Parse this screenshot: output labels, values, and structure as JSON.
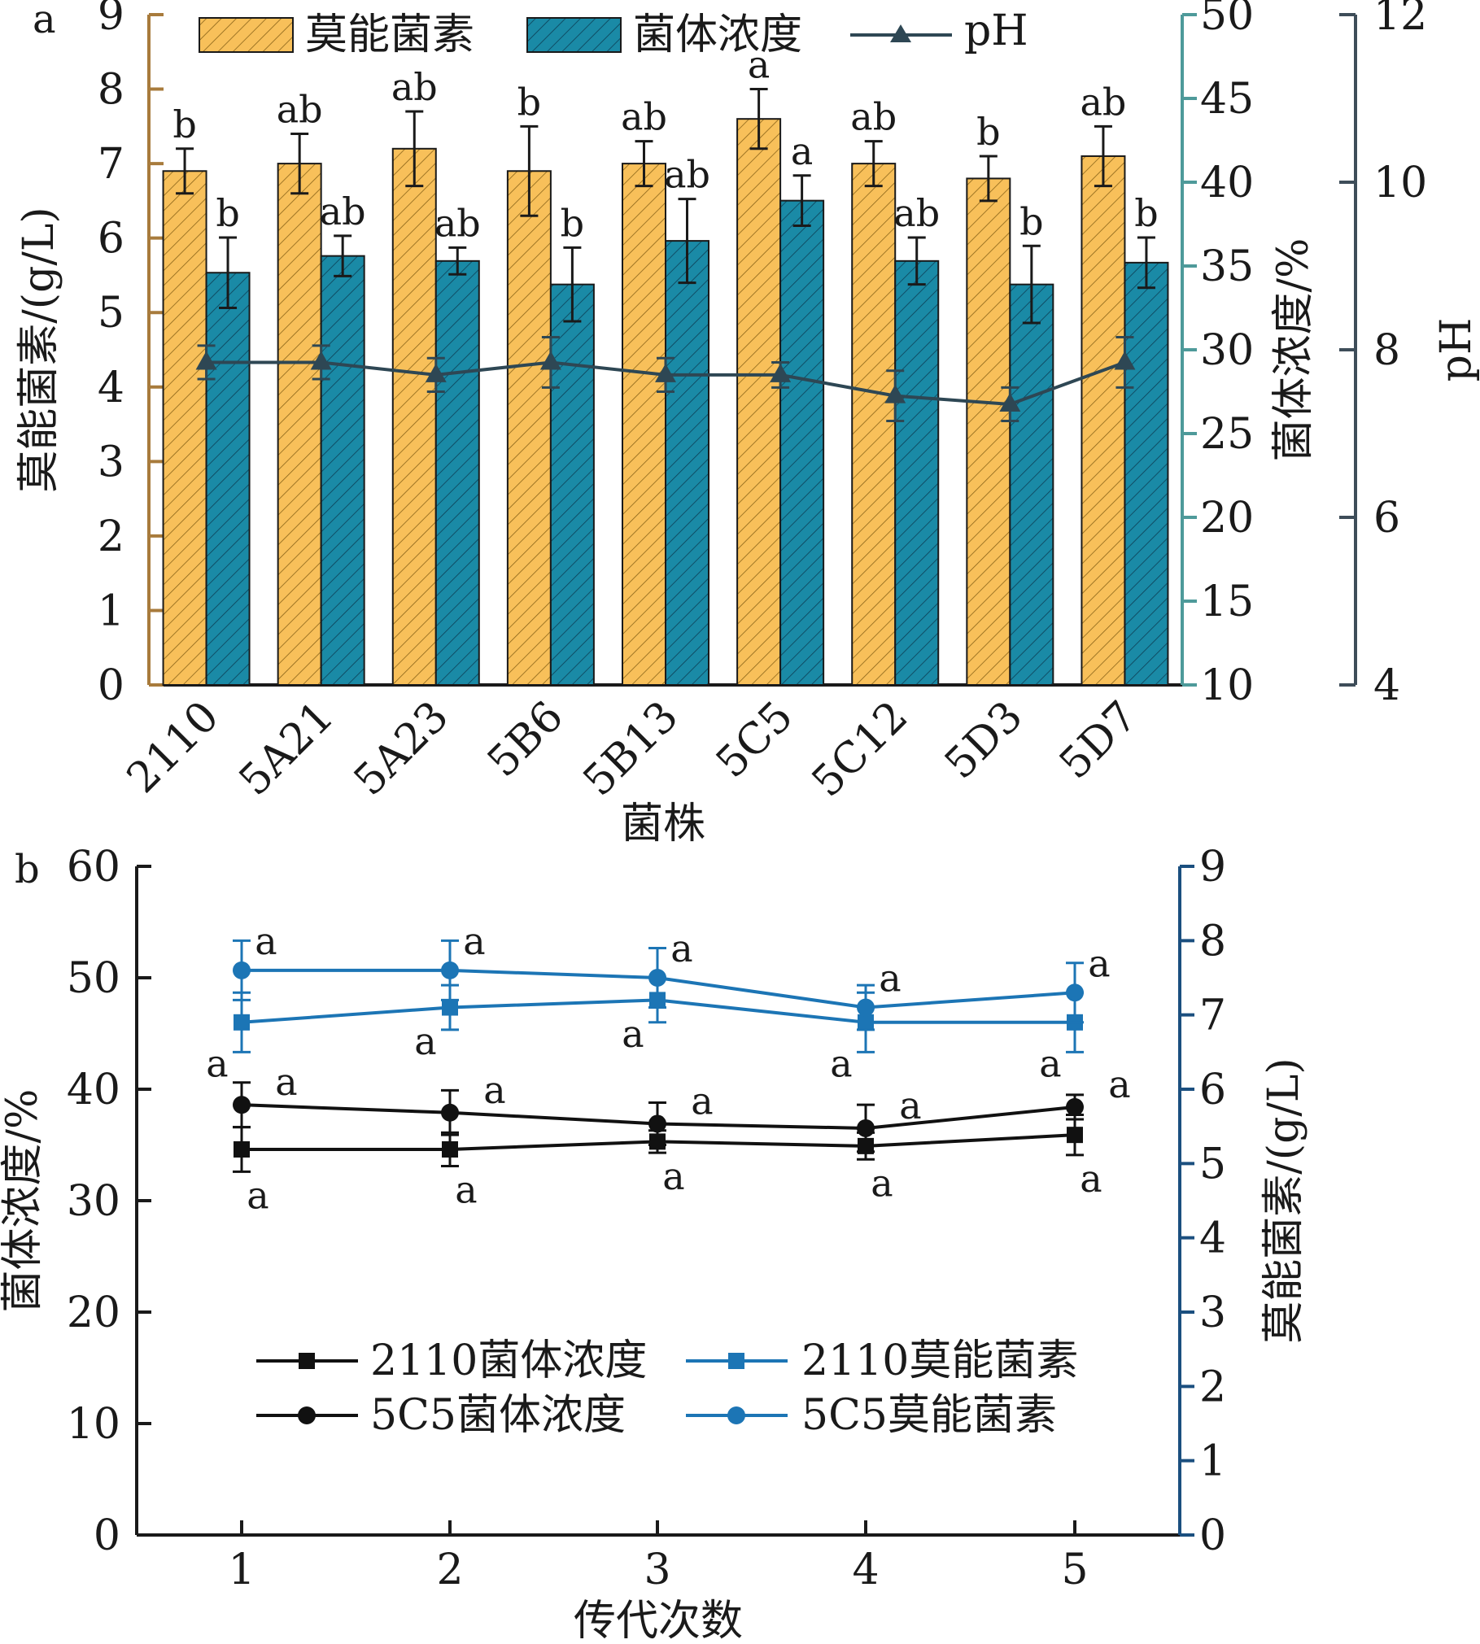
{
  "chart_data": [
    {
      "panel": "a",
      "type": "bar",
      "xlabel": "菌株",
      "categories": [
        "2110",
        "5A21",
        "5A23",
        "5B6",
        "5B13",
        "5C5",
        "5C12",
        "5D3",
        "5D7"
      ],
      "series": [
        {
          "name": "莫能菌素",
          "axis": "left",
          "type": "bar",
          "values": [
            6.9,
            7.0,
            7.2,
            6.9,
            7.0,
            7.6,
            7.0,
            6.8,
            7.1
          ],
          "error": [
            0.3,
            0.4,
            0.5,
            0.6,
            0.3,
            0.4,
            0.3,
            0.3,
            0.4
          ],
          "letters": [
            "b",
            "ab",
            "ab",
            "b",
            "ab",
            "a",
            "ab",
            "b",
            "ab"
          ],
          "color": "#F8C05A",
          "hatched": true
        },
        {
          "name": "菌体浓度",
          "axis": "right1",
          "type": "bar",
          "values": [
            34.6,
            35.6,
            35.3,
            33.9,
            36.5,
            38.9,
            35.3,
            33.9,
            35.2
          ],
          "error": [
            2.1,
            1.2,
            0.8,
            2.2,
            2.5,
            1.5,
            1.4,
            2.3,
            1.5
          ],
          "letters": [
            "b",
            "ab",
            "ab",
            "b",
            "ab",
            "a",
            "ab",
            "b",
            "b"
          ],
          "color": "#1A8AA6",
          "hatched": true
        },
        {
          "name": "pH",
          "axis": "right2",
          "type": "line",
          "marker": "triangle",
          "values": [
            7.85,
            7.85,
            7.7,
            7.85,
            7.7,
            7.7,
            7.45,
            7.35,
            7.85
          ],
          "error": [
            0.2,
            0.2,
            0.2,
            0.3,
            0.2,
            0.15,
            0.3,
            0.2,
            0.3
          ],
          "color": "#2E4754"
        }
      ],
      "axes": {
        "left": {
          "label": "莫能菌素/(g/L)",
          "ylim": [
            0,
            9
          ],
          "ticks": [
            "0",
            "1",
            "2",
            "3",
            "4",
            "5",
            "6",
            "7",
            "8",
            "9"
          ],
          "color": "#A87B3C"
        },
        "right1": {
          "label": "菌体浓度/%",
          "ylim": [
            10,
            50
          ],
          "ticks": [
            "10",
            "15",
            "20",
            "25",
            "30",
            "35",
            "40",
            "45",
            "50"
          ],
          "color": "#4E9A9A"
        },
        "right2": {
          "label": "pH",
          "ylim": [
            4,
            12
          ],
          "ticks": [
            "4",
            "6",
            "8",
            "10",
            "12"
          ],
          "color": "#3E4D59"
        }
      },
      "legend": "top",
      "grid": false
    },
    {
      "panel": "b",
      "type": "line",
      "xlabel": "传代次数",
      "x": [
        1,
        2,
        3,
        4,
        5
      ],
      "xticks": [
        "1",
        "2",
        "3",
        "4",
        "5"
      ],
      "series": [
        {
          "name": "2110菌体浓度",
          "axis": "left",
          "marker": "square",
          "color": "#111111",
          "values": [
            34.6,
            34.6,
            35.3,
            34.9,
            35.9
          ],
          "error": [
            2.0,
            1.5,
            1.0,
            1.2,
            1.8
          ],
          "letters": [
            "a",
            "a",
            "a",
            "a",
            "a"
          ]
        },
        {
          "name": "5C5菌体浓度",
          "axis": "left",
          "marker": "circle",
          "color": "#111111",
          "values": [
            38.6,
            37.9,
            36.9,
            36.5,
            38.4
          ],
          "error": [
            2.0,
            2.0,
            1.9,
            2.1,
            1.1
          ],
          "letters": [
            "a",
            "a",
            "a",
            "a",
            "a"
          ]
        },
        {
          "name": "2110莫能菌素",
          "axis": "right",
          "marker": "square",
          "color": "#1C75B5",
          "values": [
            6.9,
            7.1,
            7.2,
            6.9,
            6.9
          ],
          "error": [
            0.4,
            0.3,
            0.3,
            0.4,
            0.4
          ],
          "letters": [
            "a",
            "a",
            "a",
            "a",
            "a"
          ]
        },
        {
          "name": "5C5莫能菌素",
          "axis": "right",
          "marker": "circle",
          "color": "#1C75B5",
          "values": [
            7.6,
            7.6,
            7.5,
            7.1,
            7.3
          ],
          "error": [
            0.4,
            0.4,
            0.4,
            0.3,
            0.4
          ],
          "letters": [
            "a",
            "a",
            "a",
            "a",
            "a"
          ]
        }
      ],
      "axes": {
        "left": {
          "label": "菌体浓度/%",
          "ylim": [
            0,
            60
          ],
          "ticks": [
            "0",
            "10",
            "20",
            "30",
            "40",
            "50",
            "60"
          ],
          "color": "#111111"
        },
        "right": {
          "label": "莫能菌素/(g/L)",
          "ylim": [
            0,
            9
          ],
          "ticks": [
            "0",
            "1",
            "2",
            "3",
            "4",
            "5",
            "6",
            "7",
            "8",
            "9"
          ],
          "color": "#1B4F7F"
        }
      },
      "legend": "lower-center",
      "grid": false
    }
  ]
}
